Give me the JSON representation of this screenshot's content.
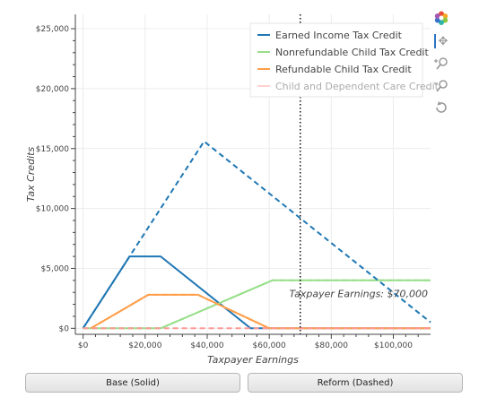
{
  "chart_data": {
    "type": "line",
    "xlabel": "Taxpayer Earnings",
    "ylabel": "Tax Credits",
    "xlim": [
      -2500,
      112000
    ],
    "ylim": [
      -500,
      26200
    ],
    "x_ticks": [
      0,
      20000,
      40000,
      60000,
      80000,
      100000
    ],
    "x_tick_labels": [
      "$0",
      "$20,000",
      "$40,000",
      "$60,000",
      "$80,000",
      "$100,000"
    ],
    "y_ticks": [
      0,
      5000,
      10000,
      15000,
      20000,
      25000
    ],
    "y_tick_labels": [
      "$0",
      "$5,000",
      "$10,000",
      "$15,000",
      "$20,000",
      "$25,000"
    ],
    "grid": true,
    "legend_position": "top-right",
    "vline": {
      "x": 70000,
      "label": "Taxpayer Earnings: $70,000"
    },
    "series": [
      {
        "name": "Earned Income Tax Credit",
        "color": "#1f77b4",
        "style": "solid",
        "visible": true,
        "points": [
          [
            0,
            0
          ],
          [
            15000,
            6000
          ],
          [
            25000,
            6000
          ],
          [
            54000,
            0
          ],
          [
            112000,
            0
          ]
        ]
      },
      {
        "name": "Nonrefundable Child Tax Credit",
        "color": "#98df8a",
        "style": "solid",
        "visible": true,
        "points": [
          [
            0,
            0
          ],
          [
            25000,
            0
          ],
          [
            61000,
            4000
          ],
          [
            112000,
            4000
          ]
        ]
      },
      {
        "name": "Refundable Child Tax Credit",
        "color": "#ff9f4a",
        "style": "solid",
        "visible": true,
        "points": [
          [
            2500,
            0
          ],
          [
            21000,
            2800
          ],
          [
            37000,
            2800
          ],
          [
            60000,
            0
          ],
          [
            112000,
            0
          ]
        ]
      },
      {
        "name": "Child and Dependent Care Credit",
        "color": "#ff9896",
        "style": "solid",
        "visible": false,
        "points": [
          [
            0,
            0
          ],
          [
            112000,
            0
          ]
        ]
      },
      {
        "name": "Earned Income Tax Credit (reform)",
        "color": "#1f77b4",
        "style": "dashed",
        "legend": false,
        "points": [
          [
            0,
            0
          ],
          [
            39000,
            15600
          ],
          [
            112000,
            500
          ]
        ]
      },
      {
        "name": "Nonrefundable Child Tax Credit (reform)",
        "color": "#98df8a",
        "style": "dashed",
        "legend": false,
        "points": [
          [
            0,
            0
          ],
          [
            25000,
            0
          ],
          [
            61000,
            4000
          ],
          [
            112000,
            4000
          ]
        ]
      },
      {
        "name": "Refundable Child Tax Credit (reform)",
        "color": "#ff9f4a",
        "style": "dashed",
        "legend": false,
        "points": [
          [
            2500,
            0
          ],
          [
            21000,
            2800
          ],
          [
            37000,
            2800
          ],
          [
            60000,
            0
          ],
          [
            112000,
            0
          ]
        ]
      },
      {
        "name": "Child and Dependent Care Credit (reform)",
        "color": "#ff9896",
        "style": "dashed",
        "legend": false,
        "points": [
          [
            0,
            0
          ],
          [
            112000,
            0
          ]
        ]
      }
    ]
  },
  "buttons": {
    "base": "Base (Solid)",
    "reform": "Reform (Dashed)"
  },
  "toolbar": [
    "bokeh-logo-icon",
    "pan-icon",
    "zoom-in-icon",
    "zoom-out-icon",
    "reset-icon"
  ]
}
